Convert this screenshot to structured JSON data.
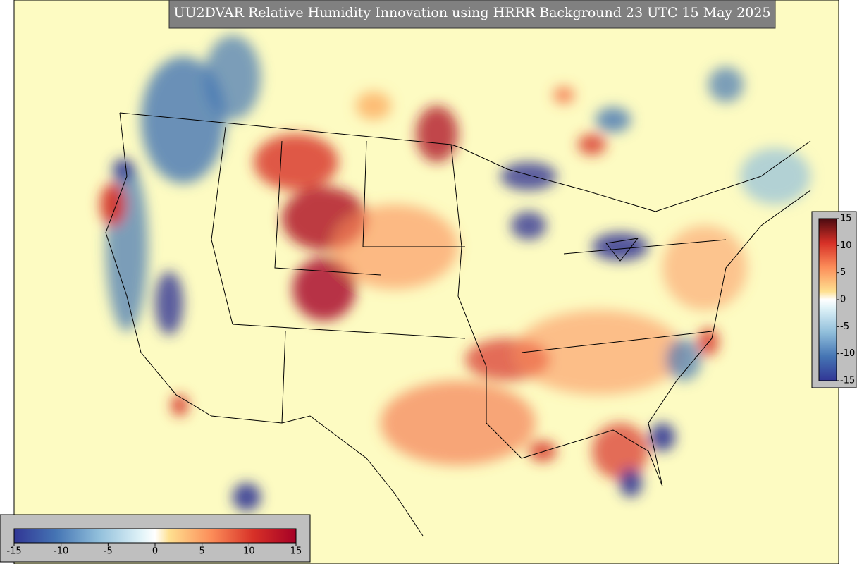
{
  "title": "UU2DVAR Relative Humidity Innovation using HRRR Background 23 UTC 15 May 2025",
  "colorbar_horizontal": {
    "ticks": [
      -15,
      -10,
      -5,
      0,
      5,
      10,
      15
    ]
  },
  "colorbar_vertical": {
    "ticks": [
      15,
      10,
      5,
      0,
      -5,
      -10,
      -15
    ]
  }
}
